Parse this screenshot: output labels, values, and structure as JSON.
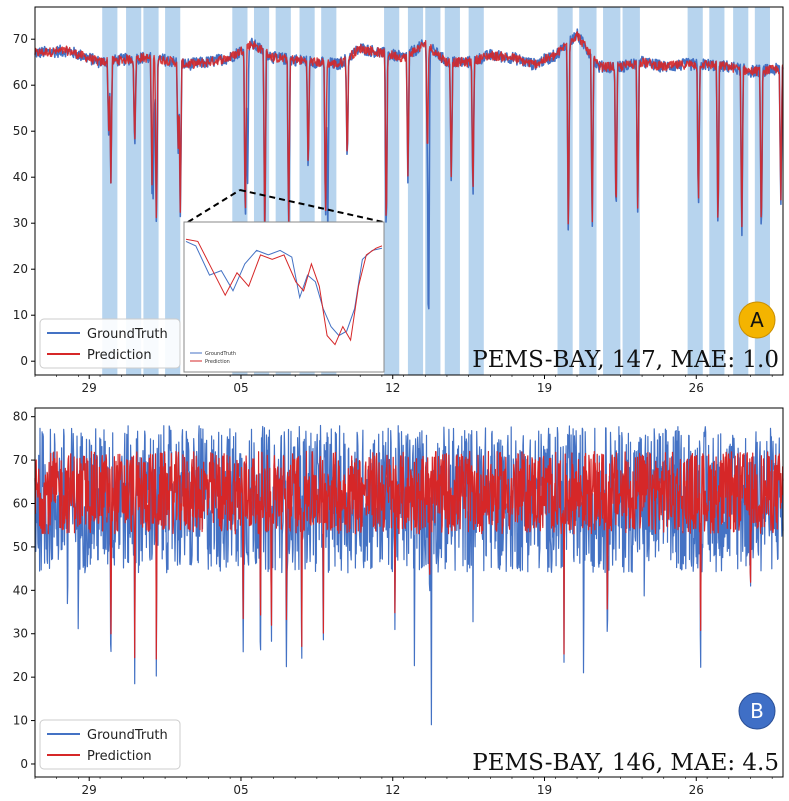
{
  "colors": {
    "ground_truth": "#4472c4",
    "prediction": "#d62728",
    "highlight": "#9fc5e8",
    "badge_a": "#f4b400",
    "badge_b": "#3f6fc6"
  },
  "chart_data": [
    {
      "panel": "A",
      "type": "line",
      "caption": "PEMS-BAY, 147, MAE: 1.0",
      "badge": "A",
      "legend": [
        "GroundTruth",
        "Prediction"
      ],
      "legend_position": "lower-left",
      "x_tick_labels": [
        "29",
        "05",
        "12",
        "19",
        "26"
      ],
      "x_tick_pos": [
        2.5,
        9.5,
        16.5,
        23.5,
        30.5
      ],
      "xlim": [
        0,
        34.5
      ],
      "ylim": [
        -3,
        77
      ],
      "yticks": [
        0,
        10,
        20,
        30,
        40,
        50,
        60,
        70
      ],
      "baseline": [
        [
          0,
          67
        ],
        [
          1.5,
          67.5
        ],
        [
          3,
          65
        ],
        [
          4,
          65.5
        ],
        [
          5,
          66
        ],
        [
          6,
          65.5
        ],
        [
          7,
          64.5
        ],
        [
          8,
          65
        ],
        [
          9,
          66
        ],
        [
          10,
          69
        ],
        [
          11,
          66
        ],
        [
          12,
          65.5
        ],
        [
          13,
          65
        ],
        [
          14,
          64.5
        ],
        [
          15,
          68
        ],
        [
          16,
          67
        ],
        [
          17,
          66
        ],
        [
          18,
          69
        ],
        [
          19,
          65
        ],
        [
          20,
          65
        ],
        [
          21,
          66.5
        ],
        [
          22,
          66
        ],
        [
          23,
          64.5
        ],
        [
          24,
          66.5
        ],
        [
          25,
          71
        ],
        [
          26,
          64
        ],
        [
          27,
          64
        ],
        [
          28,
          65
        ],
        [
          29,
          64
        ],
        [
          30,
          64.5
        ],
        [
          31,
          64.5
        ],
        [
          32,
          64
        ],
        [
          33,
          63
        ],
        [
          34.5,
          63.5
        ]
      ],
      "dips_truth": [
        [
          3.4,
          49
        ],
        [
          3.5,
          38.5
        ],
        [
          4.6,
          45
        ],
        [
          5.4,
          35
        ],
        [
          5.45,
          33.5
        ],
        [
          5.5,
          52
        ],
        [
          5.6,
          27
        ],
        [
          6.6,
          44
        ],
        [
          6.7,
          30
        ],
        [
          9.7,
          26.5
        ],
        [
          9.8,
          35
        ],
        [
          10.6,
          24
        ],
        [
          11.7,
          25.5
        ],
        [
          12.6,
          40
        ],
        [
          13.4,
          29
        ],
        [
          13.5,
          26.5
        ],
        [
          14.4,
          42
        ],
        [
          16.2,
          24.5
        ],
        [
          17.2,
          38.5
        ],
        [
          18.1,
          41
        ],
        [
          18.15,
          0
        ],
        [
          19.2,
          38
        ],
        [
          20.2,
          33
        ],
        [
          24.6,
          24.5
        ],
        [
          25.7,
          28
        ],
        [
          26.8,
          29
        ],
        [
          27.8,
          31
        ],
        [
          30.6,
          31.5
        ],
        [
          31.5,
          27
        ],
        [
          32.6,
          26
        ],
        [
          33.5,
          24
        ],
        [
          34.4,
          33.5
        ]
      ],
      "dips_pred": [
        [
          3.4,
          50
        ],
        [
          3.5,
          38.5
        ],
        [
          4.6,
          46
        ],
        [
          5.4,
          37
        ],
        [
          5.6,
          28
        ],
        [
          6.6,
          45
        ],
        [
          6.7,
          31
        ],
        [
          9.7,
          28
        ],
        [
          10.6,
          26
        ],
        [
          11.7,
          27
        ],
        [
          12.6,
          41
        ],
        [
          13.4,
          30
        ],
        [
          14.4,
          43
        ],
        [
          16.2,
          26
        ],
        [
          17.2,
          40
        ],
        [
          18.1,
          43
        ],
        [
          19.2,
          39
        ],
        [
          20.2,
          35
        ],
        [
          24.6,
          26
        ],
        [
          25.7,
          29
        ],
        [
          26.8,
          30
        ],
        [
          27.8,
          32
        ],
        [
          30.6,
          32.5
        ],
        [
          31.5,
          28
        ],
        [
          32.6,
          28
        ],
        [
          33.5,
          26
        ],
        [
          34.4,
          34.5
        ]
      ],
      "highlight_spans": [
        [
          3.1,
          3.8
        ],
        [
          4.2,
          4.9
        ],
        [
          5.0,
          5.7
        ],
        [
          6.0,
          6.7
        ],
        [
          9.1,
          9.8
        ],
        [
          10.1,
          10.8
        ],
        [
          11.1,
          11.8
        ],
        [
          12.2,
          12.9
        ],
        [
          13.2,
          13.9
        ],
        [
          16.1,
          16.8
        ],
        [
          17.2,
          17.9
        ],
        [
          18.0,
          18.7
        ],
        [
          18.9,
          19.6
        ],
        [
          20.0,
          20.7
        ],
        [
          24.1,
          24.8
        ],
        [
          25.1,
          25.9
        ],
        [
          26.2,
          27.0
        ],
        [
          27.1,
          27.9
        ],
        [
          30.1,
          30.8
        ],
        [
          31.1,
          31.8
        ],
        [
          32.2,
          32.9
        ],
        [
          33.2,
          33.9
        ]
      ],
      "inset": {
        "legend": [
          "GroundTruth",
          "Prediction"
        ],
        "truth": [
          [
            0,
            60
          ],
          [
            0.05,
            58
          ],
          [
            0.12,
            45
          ],
          [
            0.18,
            47
          ],
          [
            0.24,
            38
          ],
          [
            0.3,
            50
          ],
          [
            0.36,
            56
          ],
          [
            0.42,
            54
          ],
          [
            0.48,
            56
          ],
          [
            0.54,
            53
          ],
          [
            0.58,
            35
          ],
          [
            0.62,
            45
          ],
          [
            0.66,
            42
          ],
          [
            0.7,
            30
          ],
          [
            0.74,
            22
          ],
          [
            0.78,
            18
          ],
          [
            0.82,
            20
          ],
          [
            0.86,
            30
          ],
          [
            0.9,
            52
          ],
          [
            0.95,
            56
          ],
          [
            1,
            57
          ]
        ],
        "pred": [
          [
            0,
            61
          ],
          [
            0.06,
            60
          ],
          [
            0.13,
            48
          ],
          [
            0.2,
            36
          ],
          [
            0.26,
            46
          ],
          [
            0.32,
            40
          ],
          [
            0.38,
            54
          ],
          [
            0.44,
            52
          ],
          [
            0.5,
            54
          ],
          [
            0.56,
            42
          ],
          [
            0.6,
            38
          ],
          [
            0.64,
            50
          ],
          [
            0.68,
            40
          ],
          [
            0.72,
            18
          ],
          [
            0.76,
            14
          ],
          [
            0.8,
            22
          ],
          [
            0.84,
            16
          ],
          [
            0.88,
            40
          ],
          [
            0.92,
            54
          ],
          [
            0.97,
            57
          ],
          [
            1,
            58
          ]
        ]
      }
    },
    {
      "panel": "B",
      "type": "line",
      "caption": "PEMS-BAY, 146, MAE: 4.5",
      "badge": "B",
      "legend": [
        "GroundTruth",
        "Prediction"
      ],
      "legend_position": "lower-left",
      "x_tick_labels": [
        "29",
        "05",
        "12",
        "19",
        "26"
      ],
      "x_tick_pos": [
        2.5,
        9.5,
        16.5,
        23.5,
        30.5
      ],
      "xlim": [
        0,
        34.5
      ],
      "ylim": [
        -3,
        82
      ],
      "yticks": [
        0,
        10,
        20,
        30,
        40,
        50,
        60,
        70,
        80
      ],
      "truth_range": [
        44,
        78
      ],
      "pred_range": [
        53,
        72
      ],
      "dips_truth": [
        [
          1.5,
          30
        ],
        [
          2.0,
          26.5
        ],
        [
          3.5,
          14.5
        ],
        [
          4.6,
          18.5
        ],
        [
          5.6,
          15
        ],
        [
          7.2,
          38
        ],
        [
          9.6,
          23.5
        ],
        [
          10.4,
          18
        ],
        [
          10.9,
          17
        ],
        [
          11.6,
          18
        ],
        [
          12.3,
          17
        ],
        [
          13.3,
          27
        ],
        [
          16.6,
          29
        ],
        [
          17.5,
          22
        ],
        [
          18.2,
          30.5
        ],
        [
          18.28,
          0
        ],
        [
          20.2,
          32
        ],
        [
          24.4,
          22.5
        ],
        [
          25.3,
          21
        ],
        [
          26.4,
          24
        ],
        [
          28.1,
          37
        ],
        [
          30.7,
          16
        ],
        [
          33.0,
          36
        ]
      ],
      "dips_pred": [
        [
          3.5,
          20
        ],
        [
          4.6,
          24.5
        ],
        [
          5.6,
          19
        ],
        [
          9.6,
          31
        ],
        [
          10.4,
          23
        ],
        [
          10.9,
          23
        ],
        [
          11.6,
          28
        ],
        [
          12.3,
          20
        ],
        [
          13.3,
          28
        ],
        [
          16.6,
          33
        ],
        [
          18.2,
          34
        ],
        [
          24.4,
          24
        ],
        [
          26.4,
          25
        ],
        [
          30.7,
          23
        ],
        [
          33.0,
          36
        ]
      ]
    }
  ]
}
